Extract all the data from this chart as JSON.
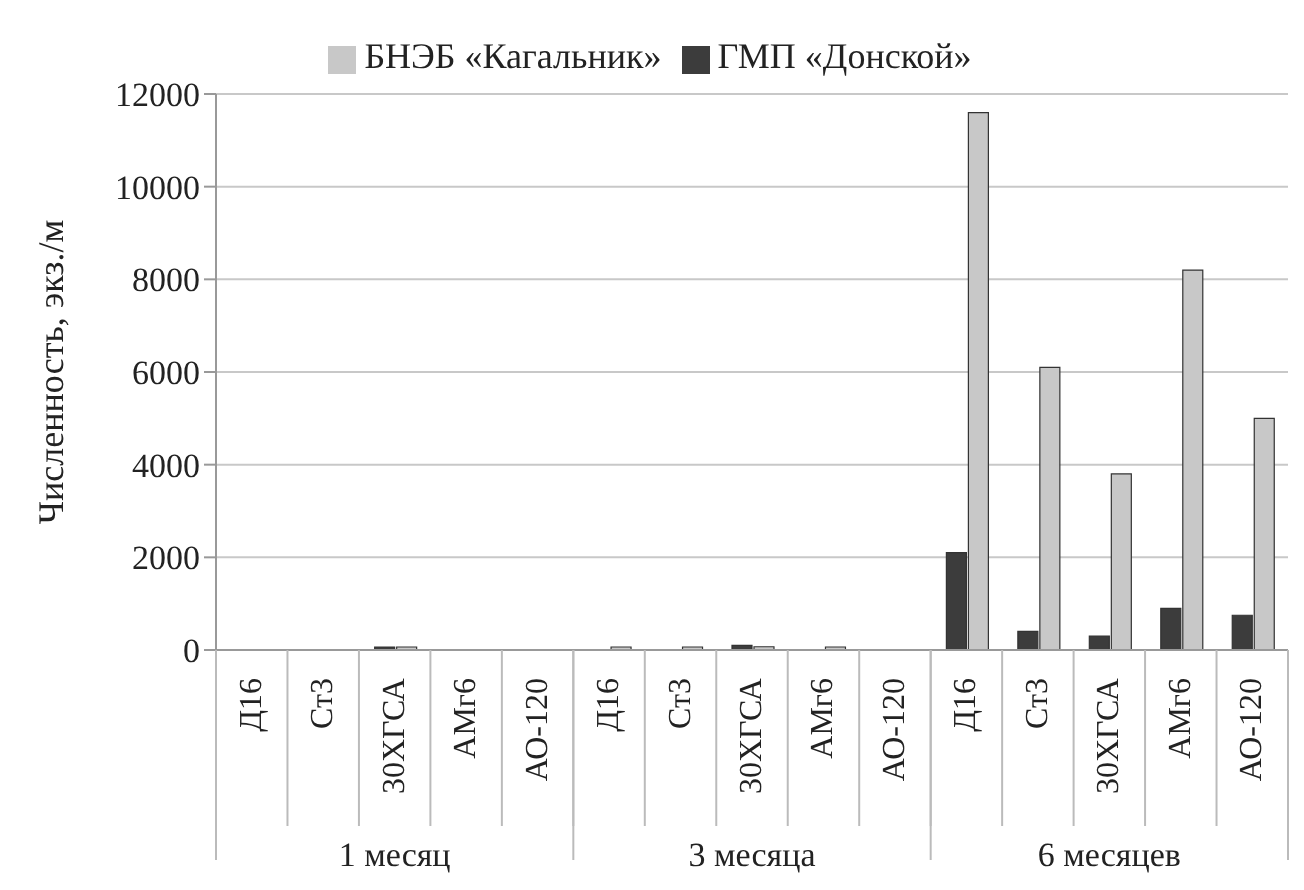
{
  "chart_data": {
    "type": "bar",
    "ylabel": "Численность, экз./м",
    "categories": [
      "Д16",
      "Ст3",
      "30ХГСА",
      "АМг6",
      "АО-120",
      "Д16",
      "Ст3",
      "30ХГСА",
      "АМг6",
      "АО-120",
      "Д16",
      "Ст3",
      "30ХГСА",
      "АМг6",
      "АО-120"
    ],
    "series": [
      {
        "name": "ГМП «Донской»",
        "color": "#3c3c3c",
        "values": [
          null,
          null,
          30,
          null,
          null,
          null,
          null,
          100,
          null,
          null,
          2100,
          400,
          300,
          900,
          750
        ]
      },
      {
        "name": "БНЭБ «Кагальник»",
        "color": "#c8c8c8",
        "values": [
          null,
          null,
          60,
          null,
          null,
          20,
          50,
          70,
          20,
          null,
          11600,
          6100,
          3800,
          8200,
          5000
        ]
      }
    ],
    "ylim": [
      0,
      12000
    ],
    "yticks": [
      0,
      2000,
      4000,
      6000,
      8000,
      10000,
      12000
    ],
    "grid": "y",
    "legend": "top",
    "annotations": [
      "1 месяц",
      "3 месяца",
      "6 месяцев"
    ]
  }
}
